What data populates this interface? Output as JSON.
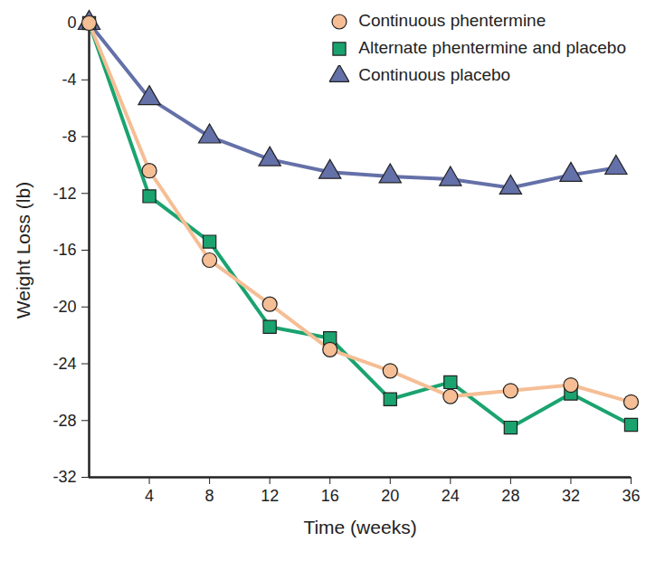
{
  "chart_data": {
    "type": "line",
    "x_label": "Time (weeks)",
    "y_label": "Weight Loss (lb)",
    "xlim": [
      0,
      36
    ],
    "xticks": [
      4,
      8,
      12,
      16,
      20,
      24,
      28,
      32,
      36
    ],
    "ylim": [
      -32,
      0
    ],
    "yticks": [
      -32,
      -28,
      -24,
      -20,
      -16,
      -12,
      -8,
      -4,
      0
    ],
    "grid": false,
    "legend": "top-right",
    "series": [
      {
        "name": "Continuous phentermine",
        "color": "#f5be95",
        "marker": "circle",
        "x": [
          0,
          4,
          8,
          12,
          16,
          20,
          24,
          28,
          32,
          36
        ],
        "values": [
          0,
          -10.4,
          -16.7,
          -19.8,
          -23,
          -24.5,
          -26.3,
          -25.9,
          -25.5,
          -26.7
        ]
      },
      {
        "name": "Alternate phentermine and placebo",
        "color": "#1aa36f",
        "marker": "square",
        "x": [
          0,
          4,
          8,
          12,
          16,
          20,
          24,
          28,
          32,
          36
        ],
        "values": [
          0,
          -12.2,
          -15.4,
          -21.4,
          -22.2,
          -26.5,
          -25.3,
          -28.5,
          -26.1,
          -28.3
        ]
      },
      {
        "name": "Continuous placebo",
        "color": "#6470a8",
        "marker": "triangle",
        "x": [
          0,
          4,
          8,
          12,
          16,
          20,
          24,
          28,
          32,
          35
        ],
        "values": [
          0,
          -5.3,
          -8,
          -9.6,
          -10.5,
          -10.8,
          -11,
          -11.6,
          -10.7,
          -10.2
        ]
      }
    ]
  }
}
